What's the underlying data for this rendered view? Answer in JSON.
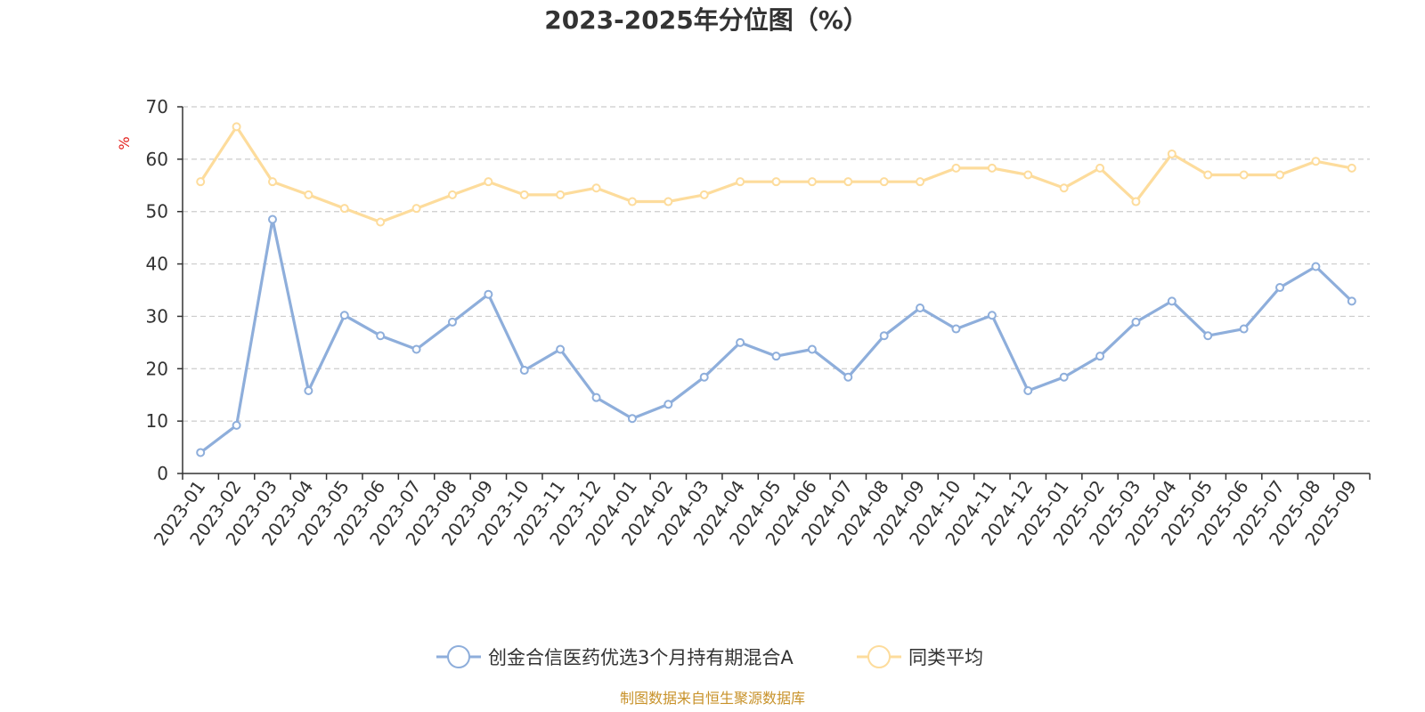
{
  "chart_data": {
    "type": "line",
    "title": "2023-2025年分位图（%）",
    "ylabel": "%",
    "xlabel": "",
    "ylim": [
      0,
      70
    ],
    "yticks": [
      0,
      10,
      20,
      30,
      40,
      50,
      60,
      70
    ],
    "grid": true,
    "legend_position": "bottom-center",
    "categories": [
      "2023-01",
      "2023-02",
      "2023-03",
      "2023-04",
      "2023-05",
      "2023-06",
      "2023-07",
      "2023-08",
      "2023-09",
      "2023-10",
      "2023-11",
      "2023-12",
      "2024-01",
      "2024-02",
      "2024-03",
      "2024-04",
      "2024-05",
      "2024-06",
      "2024-07",
      "2024-08",
      "2024-09",
      "2024-10",
      "2024-11",
      "2024-12",
      "2025-01",
      "2025-02",
      "2025-03",
      "2025-04",
      "2025-05",
      "2025-06",
      "2025-07",
      "2025-08",
      "2025-09"
    ],
    "series": [
      {
        "name": "创金合信医药优选3个月持有期混合A",
        "color": "#8eaedb",
        "values": [
          4.0,
          9.2,
          48.5,
          15.8,
          30.2,
          26.3,
          23.7,
          28.9,
          34.2,
          19.7,
          23.7,
          14.5,
          10.5,
          13.2,
          18.4,
          25.0,
          22.4,
          23.7,
          18.4,
          26.3,
          31.6,
          27.6,
          30.2,
          15.8,
          18.4,
          22.4,
          28.9,
          32.9,
          26.3,
          27.6,
          35.5,
          39.5,
          32.9
        ]
      },
      {
        "name": "同类平均",
        "color": "#fddc9c",
        "values": [
          55.7,
          66.2,
          55.7,
          53.2,
          50.6,
          48.0,
          50.6,
          53.2,
          55.7,
          53.2,
          53.2,
          54.5,
          51.9,
          51.9,
          53.2,
          55.7,
          55.7,
          55.7,
          55.7,
          55.7,
          55.7,
          58.3,
          58.3,
          57.0,
          54.5,
          58.3,
          51.9,
          61.0,
          57.0,
          57.0,
          57.0,
          59.6,
          58.3
        ]
      }
    ]
  },
  "source_text": "制图数据来自恒生聚源数据库",
  "source_color": "#c8922a",
  "ylabel_color": "#e3201c"
}
